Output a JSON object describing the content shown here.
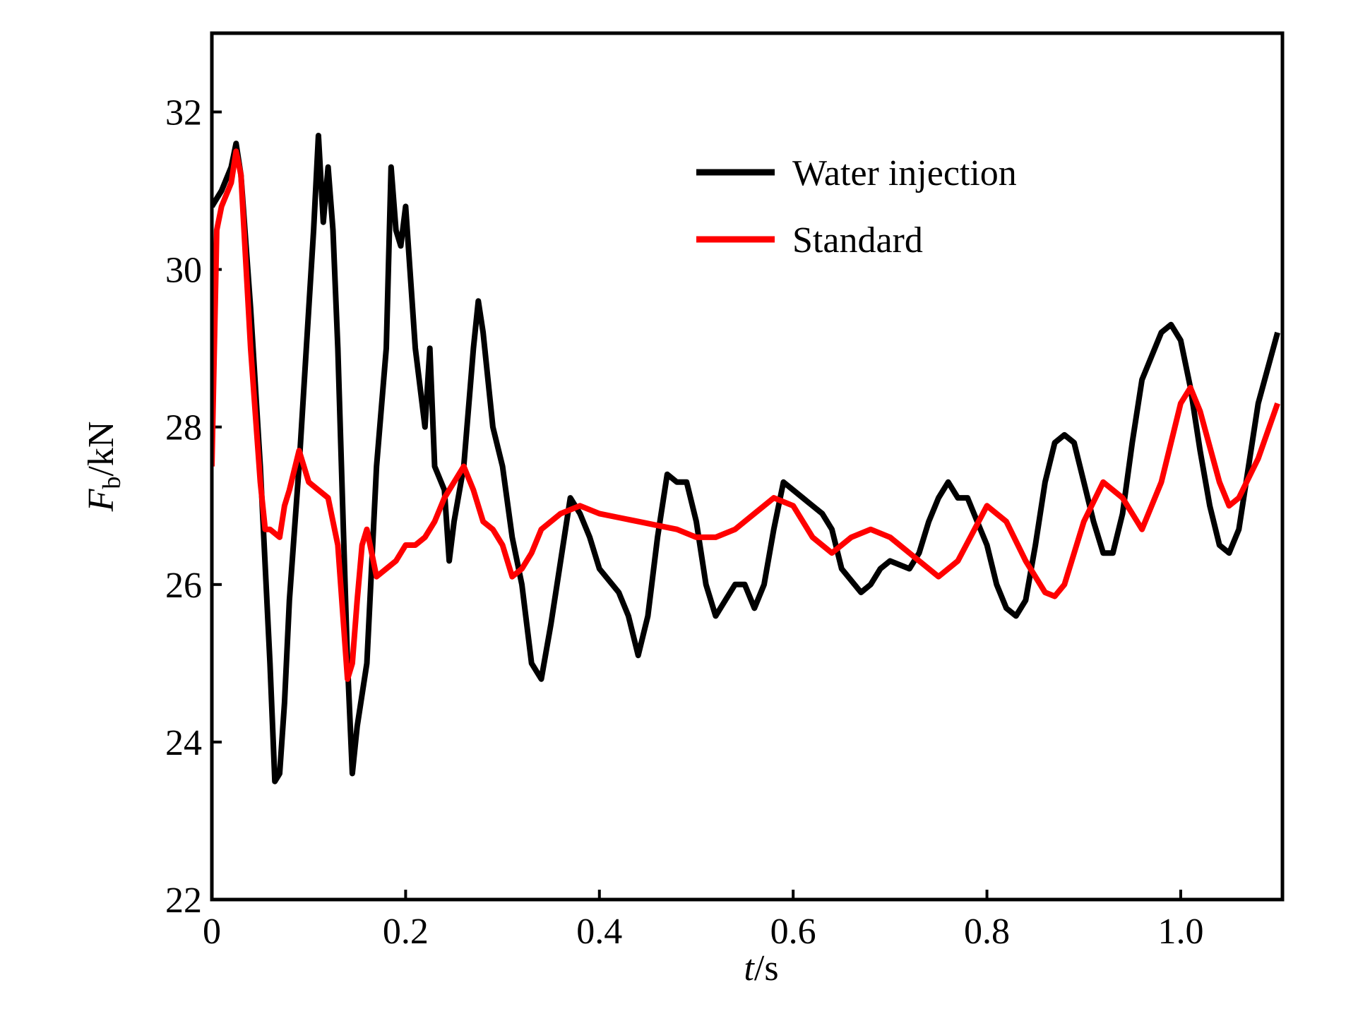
{
  "chart_data": {
    "type": "line",
    "xlabel": {
      "symbol": "t",
      "unit": "/s"
    },
    "ylabel": {
      "symbol": "F",
      "subscript": "b",
      "unit": "/kN"
    },
    "xlim": [
      0,
      1.105
    ],
    "ylim": [
      22,
      33
    ],
    "xticks": [
      0,
      0.2,
      0.4,
      0.6,
      0.8,
      {
        "value": 1,
        "label": "1.0"
      }
    ],
    "yticks": [
      22,
      24,
      26,
      28,
      30,
      32
    ],
    "series": [
      {
        "name": "Water injection",
        "color": "#000000",
        "x": [
          0,
          0.01,
          0.02,
          0.025,
          0.03,
          0.04,
          0.05,
          0.06,
          0.065,
          0.07,
          0.075,
          0.08,
          0.09,
          0.1,
          0.105,
          0.11,
          0.115,
          0.12,
          0.125,
          0.13,
          0.135,
          0.14,
          0.145,
          0.15,
          0.16,
          0.17,
          0.18,
          0.185,
          0.19,
          0.195,
          0.2,
          0.21,
          0.22,
          0.225,
          0.23,
          0.24,
          0.245,
          0.25,
          0.26,
          0.27,
          0.275,
          0.28,
          0.29,
          0.3,
          0.31,
          0.32,
          0.33,
          0.34,
          0.35,
          0.36,
          0.37,
          0.38,
          0.39,
          0.4,
          0.42,
          0.43,
          0.44,
          0.45,
          0.46,
          0.47,
          0.48,
          0.49,
          0.5,
          0.51,
          0.52,
          0.53,
          0.54,
          0.55,
          0.56,
          0.57,
          0.58,
          0.59,
          0.6,
          0.62,
          0.63,
          0.64,
          0.65,
          0.67,
          0.68,
          0.69,
          0.7,
          0.72,
          0.73,
          0.74,
          0.75,
          0.76,
          0.77,
          0.78,
          0.79,
          0.8,
          0.81,
          0.82,
          0.83,
          0.84,
          0.85,
          0.86,
          0.87,
          0.88,
          0.89,
          0.9,
          0.91,
          0.92,
          0.93,
          0.94,
          0.95,
          0.96,
          0.98,
          0.99,
          1.0,
          1.01,
          1.02,
          1.03,
          1.04,
          1.05,
          1.06,
          1.07,
          1.08,
          1.1
        ],
        "values": [
          30.8,
          31.0,
          31.3,
          31.6,
          31.2,
          29.5,
          27.5,
          25.0,
          23.5,
          23.6,
          24.5,
          25.8,
          27.5,
          29.5,
          30.5,
          31.7,
          30.6,
          31.3,
          30.5,
          29.0,
          27.0,
          25.0,
          23.6,
          24.2,
          25.0,
          27.5,
          29.0,
          31.3,
          30.5,
          30.3,
          30.8,
          29.0,
          28.0,
          29.0,
          27.5,
          27.2,
          26.3,
          26.8,
          27.5,
          29.0,
          29.6,
          29.2,
          28.0,
          27.5,
          26.6,
          26.0,
          25.0,
          24.8,
          25.5,
          26.3,
          27.1,
          26.9,
          26.6,
          26.2,
          25.9,
          25.6,
          25.1,
          25.6,
          26.6,
          27.4,
          27.3,
          27.3,
          26.8,
          26.0,
          25.6,
          25.8,
          26.0,
          26.0,
          25.7,
          26.0,
          26.7,
          27.3,
          27.2,
          27.0,
          26.9,
          26.7,
          26.2,
          25.9,
          26.0,
          26.2,
          26.3,
          26.2,
          26.4,
          26.8,
          27.1,
          27.3,
          27.1,
          27.1,
          26.8,
          26.5,
          26.0,
          25.7,
          25.6,
          25.8,
          26.5,
          27.3,
          27.8,
          27.9,
          27.8,
          27.3,
          26.8,
          26.4,
          26.4,
          26.9,
          27.8,
          28.6,
          29.2,
          29.3,
          29.1,
          28.5,
          27.7,
          27.0,
          26.5,
          26.4,
          26.7,
          27.5,
          28.3,
          29.2
        ]
      },
      {
        "name": "Standard",
        "color": "#ff0000",
        "x": [
          0,
          0.005,
          0.01,
          0.02,
          0.025,
          0.03,
          0.04,
          0.05,
          0.055,
          0.06,
          0.07,
          0.075,
          0.08,
          0.09,
          0.1,
          0.11,
          0.12,
          0.13,
          0.14,
          0.145,
          0.15,
          0.155,
          0.16,
          0.17,
          0.18,
          0.19,
          0.2,
          0.21,
          0.22,
          0.23,
          0.24,
          0.25,
          0.26,
          0.27,
          0.28,
          0.29,
          0.3,
          0.31,
          0.32,
          0.33,
          0.34,
          0.36,
          0.38,
          0.4,
          0.42,
          0.44,
          0.46,
          0.48,
          0.5,
          0.52,
          0.54,
          0.56,
          0.58,
          0.6,
          0.62,
          0.64,
          0.66,
          0.68,
          0.7,
          0.72,
          0.75,
          0.77,
          0.8,
          0.82,
          0.84,
          0.86,
          0.87,
          0.88,
          0.9,
          0.92,
          0.94,
          0.96,
          0.98,
          1.0,
          1.01,
          1.02,
          1.04,
          1.05,
          1.06,
          1.08,
          1.1
        ],
        "values": [
          27.5,
          30.5,
          30.8,
          31.1,
          31.5,
          31.2,
          29.0,
          27.3,
          26.7,
          26.7,
          26.6,
          27.0,
          27.2,
          27.7,
          27.3,
          27.2,
          27.1,
          26.5,
          24.8,
          25.0,
          25.8,
          26.5,
          26.7,
          26.1,
          26.2,
          26.3,
          26.5,
          26.5,
          26.6,
          26.8,
          27.1,
          27.3,
          27.5,
          27.2,
          26.8,
          26.7,
          26.5,
          26.1,
          26.2,
          26.4,
          26.7,
          26.9,
          27.0,
          26.9,
          26.85,
          26.8,
          26.75,
          26.7,
          26.6,
          26.6,
          26.7,
          26.9,
          27.1,
          27.0,
          26.6,
          26.4,
          26.6,
          26.7,
          26.6,
          26.4,
          26.1,
          26.3,
          27.0,
          26.8,
          26.3,
          25.9,
          25.85,
          26.0,
          26.8,
          27.3,
          27.1,
          26.7,
          27.3,
          28.3,
          28.5,
          28.2,
          27.3,
          27.0,
          27.1,
          27.6,
          28.3
        ]
      }
    ]
  }
}
